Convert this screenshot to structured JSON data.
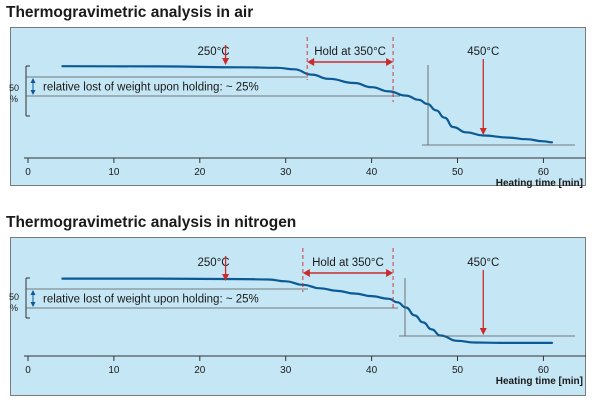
{
  "chart_data": [
    {
      "type": "line",
      "title": "Thermogravimetric analysis in air",
      "xlabel": "Heating time [min]",
      "ylabel": "%",
      "x_ticks": [
        0,
        10,
        20,
        30,
        40,
        50,
        60
      ],
      "xlim": [
        0,
        61
      ],
      "y_tick_label": "50",
      "grid": false,
      "series": [
        {
          "x": [
            4,
            15,
            25,
            29,
            31,
            33,
            35,
            38,
            40,
            42,
            44,
            45.5,
            46.5,
            47.5,
            48.5,
            49.5,
            51,
            53,
            56,
            58,
            60,
            61
          ],
          "y": [
            91,
            90.8,
            90,
            89.5,
            88,
            83,
            79,
            75,
            71,
            67,
            63,
            59,
            55,
            49,
            42,
            33,
            28,
            25,
            23,
            21.5,
            19.5,
            18.5
          ]
        }
      ],
      "annotations": {
        "start_label": "250°C",
        "start_x": 23,
        "hold_label": "Hold at 350°C",
        "hold_range": [
          32.5,
          42.5
        ],
        "end_label": "450°C",
        "end_x": 53,
        "loss_text": "relative lost of weight upon holding: ~ 25%"
      }
    },
    {
      "type": "line",
      "title": "Thermogravimetric analysis in nitrogen",
      "xlabel": "Heating time [min]",
      "ylabel": "%",
      "x_ticks": [
        0,
        10,
        20,
        30,
        40,
        50,
        60
      ],
      "xlim": [
        0,
        61
      ],
      "y_tick_label": "50",
      "grid": false,
      "series": [
        {
          "x": [
            4,
            15,
            25,
            28,
            30,
            32,
            34,
            36,
            38,
            40,
            42,
            43,
            44,
            45,
            46,
            47,
            48,
            50,
            52,
            55,
            58,
            61
          ],
          "y": [
            92,
            92,
            91.5,
            91,
            89,
            85,
            81,
            78,
            75,
            72,
            69,
            65,
            59,
            50,
            42,
            34,
            27,
            21,
            19,
            18.5,
            18.5,
            18.5
          ]
        }
      ],
      "annotations": {
        "start_label": "250°C",
        "start_x": 23,
        "hold_label": "Hold at 350°C",
        "hold_range": [
          32,
          42.5
        ],
        "end_label": "450°C",
        "end_x": 53,
        "loss_text": "relative lost of weight upon holding: ~ 25%"
      }
    }
  ],
  "colors": {
    "plot_bg": "#c5e6f5",
    "curve": "#0b5a96",
    "arrow": "#cc2b2b",
    "text": "#1a1a1a"
  }
}
